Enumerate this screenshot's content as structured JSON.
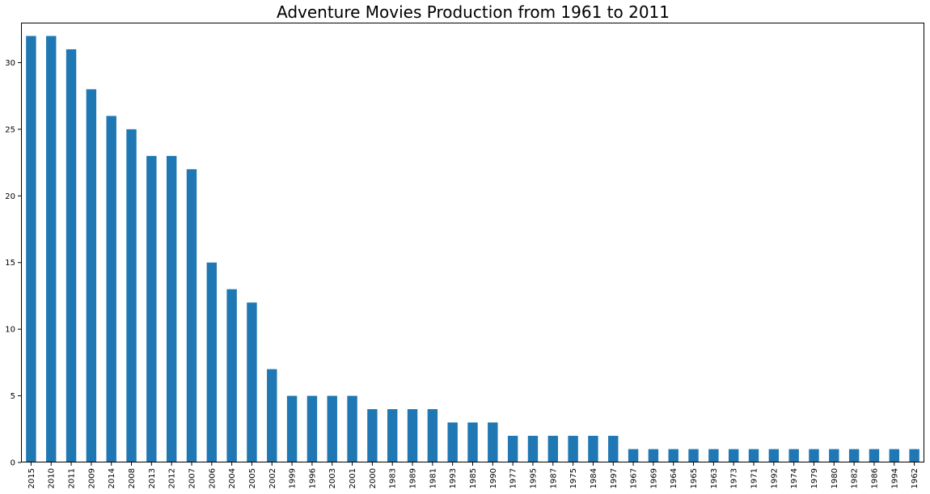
{
  "chart_data": {
    "type": "bar",
    "title": "Adventure Movies Production from 1961 to 2011",
    "xlabel": "",
    "ylabel": "",
    "ylim": [
      0,
      33
    ],
    "yticks": [
      0,
      5,
      10,
      15,
      20,
      25,
      30
    ],
    "grid": false,
    "legend": "none",
    "bar_color": "#1f77b4",
    "categories": [
      "2015",
      "2010",
      "2011",
      "2009",
      "2014",
      "2008",
      "2013",
      "2012",
      "2007",
      "2006",
      "2004",
      "2005",
      "2002",
      "1999",
      "1996",
      "2003",
      "2001",
      "2000",
      "1983",
      "1989",
      "1981",
      "1993",
      "1985",
      "1990",
      "1977",
      "1995",
      "1987",
      "1975",
      "1984",
      "1997",
      "1967",
      "1969",
      "1964",
      "1965",
      "1963",
      "1973",
      "1971",
      "1992",
      "1974",
      "1979",
      "1980",
      "1982",
      "1986",
      "1994",
      "1962"
    ],
    "values": [
      32,
      32,
      31,
      28,
      26,
      25,
      23,
      23,
      22,
      15,
      13,
      12,
      7,
      5,
      5,
      5,
      5,
      4,
      4,
      4,
      4,
      3,
      3,
      3,
      2,
      2,
      2,
      2,
      2,
      2,
      1,
      1,
      1,
      1,
      1,
      1,
      1,
      1,
      1,
      1,
      1,
      1,
      1,
      1,
      1
    ]
  }
}
